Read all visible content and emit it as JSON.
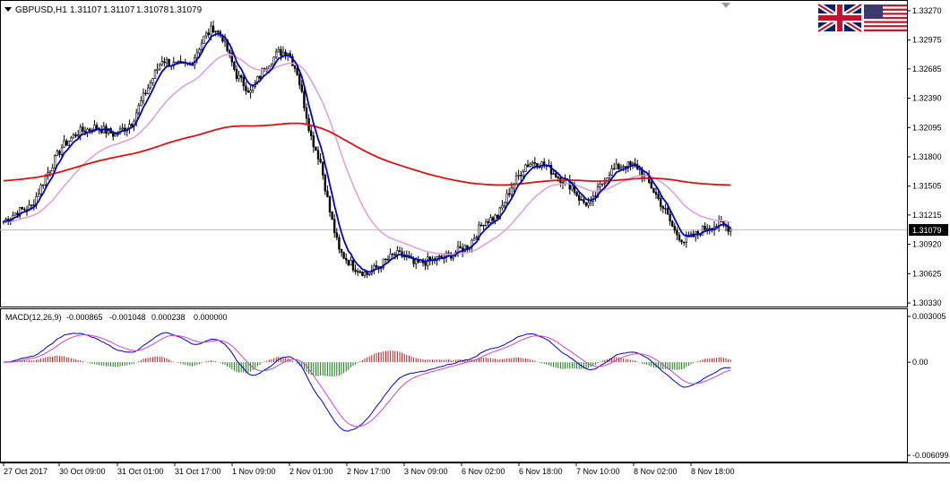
{
  "header": {
    "symbol": "GBPUSD,H1",
    "open": "1.31107",
    "high": "1.31107",
    "low": "1.31078",
    "close": "1.31079"
  },
  "macd_header": {
    "label": "MACD(12,26,9)",
    "main": "-0.000865",
    "signal": "-0.001048",
    "histogram": "0.000238",
    "extra": "0.000000"
  },
  "current_price_label": "1.31079",
  "flags": {
    "left": "uk-flag-icon",
    "right": "us-flag-icon"
  },
  "colors": {
    "candle": "#000000",
    "fast_ma": "#0000cc",
    "slow_ma": "#e0a0e0",
    "long_ma": "#dd1111",
    "macd_main": "#0000cc",
    "macd_signal": "#cc44cc",
    "hist_positive": "#aa2222",
    "hist_negative": "#117711",
    "price_line": "#c0c0c0"
  },
  "chart_data": [
    {
      "type": "candlestick",
      "symbol": "GBPUSD",
      "timeframe": "H1",
      "y_ticks": [
        "1.33270",
        "1.32975",
        "1.32685",
        "1.32390",
        "1.32095",
        "1.31800",
        "1.31505",
        "1.31215",
        "1.30920",
        "1.30625",
        "1.30330"
      ],
      "ylim": [
        1.3033,
        1.3327
      ],
      "x_ticks": [
        "27 Oct 2017",
        "30 Oct 09:00",
        "31 Oct 01:00",
        "31 Oct 17:00",
        "1 Nov 09:00",
        "2 Nov 01:00",
        "2 Nov 17:00",
        "3 Nov 09:00",
        "6 Nov 02:00",
        "6 Nov 18:00",
        "7 Nov 10:00",
        "8 Nov 02:00",
        "8 Nov 18:00"
      ],
      "anchors": [
        [
          0,
          1.3115
        ],
        [
          6,
          1.3125
        ],
        [
          12,
          1.313
        ],
        [
          18,
          1.316
        ],
        [
          25,
          1.319
        ],
        [
          32,
          1.3205
        ],
        [
          40,
          1.321
        ],
        [
          48,
          1.3202
        ],
        [
          55,
          1.3215
        ],
        [
          62,
          1.325
        ],
        [
          68,
          1.3278
        ],
        [
          74,
          1.3272
        ],
        [
          80,
          1.3272
        ],
        [
          86,
          1.33
        ],
        [
          90,
          1.331
        ],
        [
          94,
          1.33
        ],
        [
          100,
          1.3262
        ],
        [
          106,
          1.3245
        ],
        [
          112,
          1.327
        ],
        [
          118,
          1.3285
        ],
        [
          122,
          1.3286
        ],
        [
          126,
          1.3265
        ],
        [
          132,
          1.32
        ],
        [
          136,
          1.3175
        ],
        [
          140,
          1.3125
        ],
        [
          144,
          1.3085
        ],
        [
          150,
          1.307
        ],
        [
          156,
          1.3062
        ],
        [
          162,
          1.3072
        ],
        [
          168,
          1.3082
        ],
        [
          172,
          1.308
        ],
        [
          176,
          1.3072
        ],
        [
          182,
          1.3075
        ],
        [
          188,
          1.3078
        ],
        [
          194,
          1.3084
        ],
        [
          200,
          1.3092
        ],
        [
          206,
          1.3115
        ],
        [
          212,
          1.312
        ],
        [
          218,
          1.315
        ],
        [
          224,
          1.3172
        ],
        [
          228,
          1.3175
        ],
        [
          232,
          1.3172
        ],
        [
          238,
          1.316
        ],
        [
          244,
          1.315
        ],
        [
          248,
          1.3135
        ],
        [
          252,
          1.3132
        ],
        [
          256,
          1.315
        ],
        [
          260,
          1.3165
        ],
        [
          266,
          1.3172
        ],
        [
          272,
          1.317
        ],
        [
          278,
          1.315
        ],
        [
          284,
          1.3125
        ],
        [
          288,
          1.3105
        ],
        [
          292,
          1.3095
        ],
        [
          296,
          1.31
        ],
        [
          302,
          1.311
        ],
        [
          308,
          1.3112
        ],
        [
          312,
          1.3108
        ]
      ],
      "legend": [],
      "grid": false
    },
    {
      "type": "macd_histogram",
      "y_ticks": [
        "0.003005",
        "0.00",
        "-0.006099"
      ],
      "ylim": [
        -0.006099,
        0.003005
      ],
      "legend": [],
      "grid": false
    }
  ]
}
